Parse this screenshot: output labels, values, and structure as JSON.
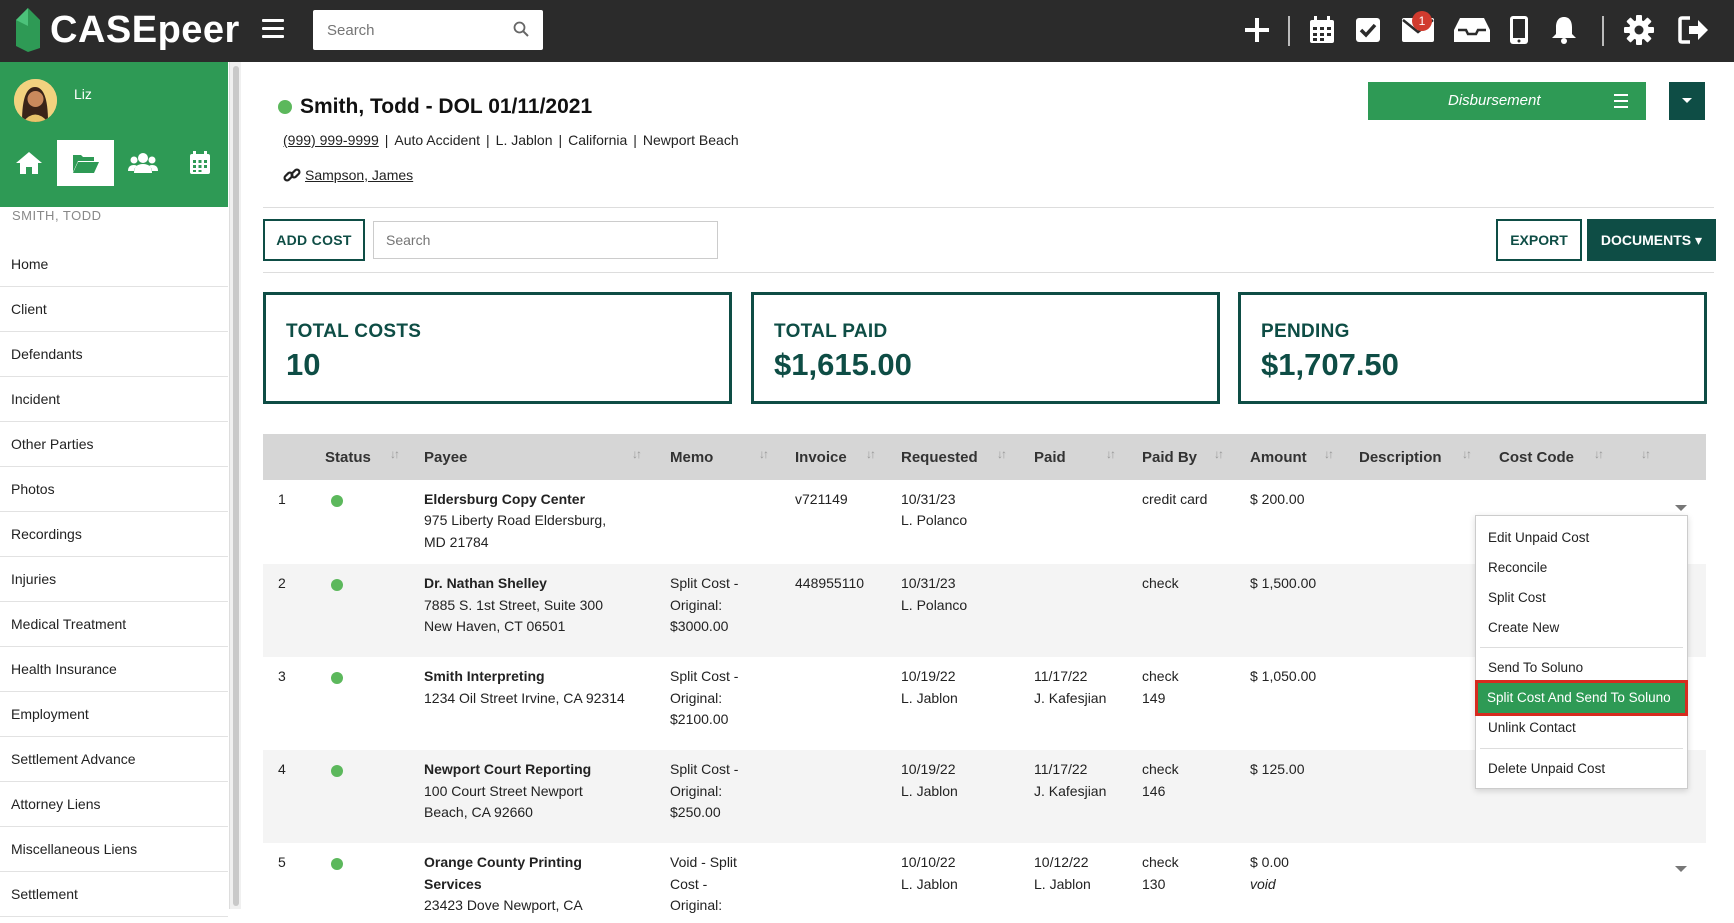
{
  "app": {
    "name": "CASEpeer"
  },
  "topbar": {
    "search_placeholder": "Search",
    "notification_count": "1"
  },
  "sidebar": {
    "user_name": "Liz",
    "client_name": "SMITH, TODD",
    "nav": [
      "Home",
      "Client",
      "Defendants",
      "Incident",
      "Other Parties",
      "Photos",
      "Recordings",
      "Injuries",
      "Medical Treatment",
      "Health Insurance",
      "Employment",
      "Settlement Advance",
      "Attorney Liens",
      "Miscellaneous Liens",
      "Settlement"
    ]
  },
  "case": {
    "title": "Smith, Todd - DOL 01/11/2021",
    "phone": "(999) 999-9999",
    "type": "Auto Accident",
    "attorney": "L. Jablon",
    "state": "California",
    "city": "Newport Beach",
    "linked_contact": "Sampson, James",
    "stage_button": "Disbursement"
  },
  "toolbar": {
    "add_cost": "ADD COST",
    "search_placeholder": "Search",
    "export": "EXPORT",
    "documents": "DOCUMENTS"
  },
  "stats": {
    "total_costs_label": "TOTAL COSTS",
    "total_costs_value": "10",
    "total_paid_label": "TOTAL PAID",
    "total_paid_value": "$1,615.00",
    "pending_label": "PENDING",
    "pending_value": "$1,707.50"
  },
  "table": {
    "headers": {
      "status": "Status",
      "payee": "Payee",
      "memo": "Memo",
      "invoice": "Invoice",
      "requested": "Requested",
      "paid": "Paid",
      "paid_by": "Paid By",
      "amount": "Amount",
      "description": "Description",
      "cost_code": "Cost Code"
    },
    "rows": [
      {
        "num": "1",
        "payee_name": "Eldersburg Copy Center",
        "payee_addr1": "975 Liberty Road Eldersburg,",
        "payee_addr2": "MD 21784",
        "memo1": "",
        "memo2": "",
        "memo3": "",
        "invoice": "v721149",
        "req_date": "10/31/23",
        "req_by": "L. Polanco",
        "paid_date": "",
        "paid_by_person": "",
        "paid_method": "credit card",
        "paid_ref": "",
        "amount": "$ 200.00",
        "amount_note": ""
      },
      {
        "num": "2",
        "payee_name": "Dr. Nathan Shelley",
        "payee_addr1": "7885 S. 1st Street, Suite 300",
        "payee_addr2": "New Haven, CT 06501",
        "memo1": "Split Cost -",
        "memo2": "Original:",
        "memo3": "$3000.00",
        "invoice": "448955110",
        "req_date": "10/31/23",
        "req_by": "L. Polanco",
        "paid_date": "",
        "paid_by_person": "",
        "paid_method": "check",
        "paid_ref": "",
        "amount": "$ 1,500.00",
        "amount_note": ""
      },
      {
        "num": "3",
        "payee_name": "Smith Interpreting",
        "payee_addr1": "1234 Oil Street Irvine, CA 92314",
        "payee_addr2": "",
        "memo1": "Split Cost -",
        "memo2": "Original:",
        "memo3": "$2100.00",
        "invoice": "",
        "req_date": "10/19/22",
        "req_by": "L. Jablon",
        "paid_date": "11/17/22",
        "paid_by_person": "J. Kafesjian",
        "paid_method": "check",
        "paid_ref": "149",
        "amount": "$ 1,050.00",
        "amount_note": ""
      },
      {
        "num": "4",
        "payee_name": "Newport Court Reporting",
        "payee_addr1": "100 Court Street Newport",
        "payee_addr2": "Beach, CA 92660",
        "memo1": "Split Cost -",
        "memo2": "Original:",
        "memo3": "$250.00",
        "invoice": "",
        "req_date": "10/19/22",
        "req_by": "L. Jablon",
        "paid_date": "11/17/22",
        "paid_by_person": "J. Kafesjian",
        "paid_method": "check",
        "paid_ref": "146",
        "amount": "$ 125.00",
        "amount_note": ""
      },
      {
        "num": "5",
        "payee_name": "Orange County Printing",
        "payee_name2": "Services",
        "payee_addr1": "23423 Dove Newport, CA",
        "payee_addr2": "",
        "memo1": "Void - Split",
        "memo2": "Cost -",
        "memo3": "Original:",
        "invoice": "",
        "req_date": "10/10/22",
        "req_by": "L. Jablon",
        "paid_date": "10/12/22",
        "paid_by_person": "L. Jablon",
        "paid_method": "check",
        "paid_ref": "130",
        "amount": "$ 0.00",
        "amount_note": "void"
      }
    ]
  },
  "menu": {
    "items": [
      "Edit Unpaid Cost",
      "Reconcile",
      "Split Cost",
      "Create New",
      "Send To Soluno",
      "Split Cost And Send To Soluno",
      "Unlink Contact",
      "Delete Unpaid Cost"
    ]
  },
  "colors": {
    "brand_green": "#2e9a55",
    "dark_teal": "#0e4d45",
    "topbar": "#2b2b2b",
    "highlight_outline": "#d62b1f"
  }
}
